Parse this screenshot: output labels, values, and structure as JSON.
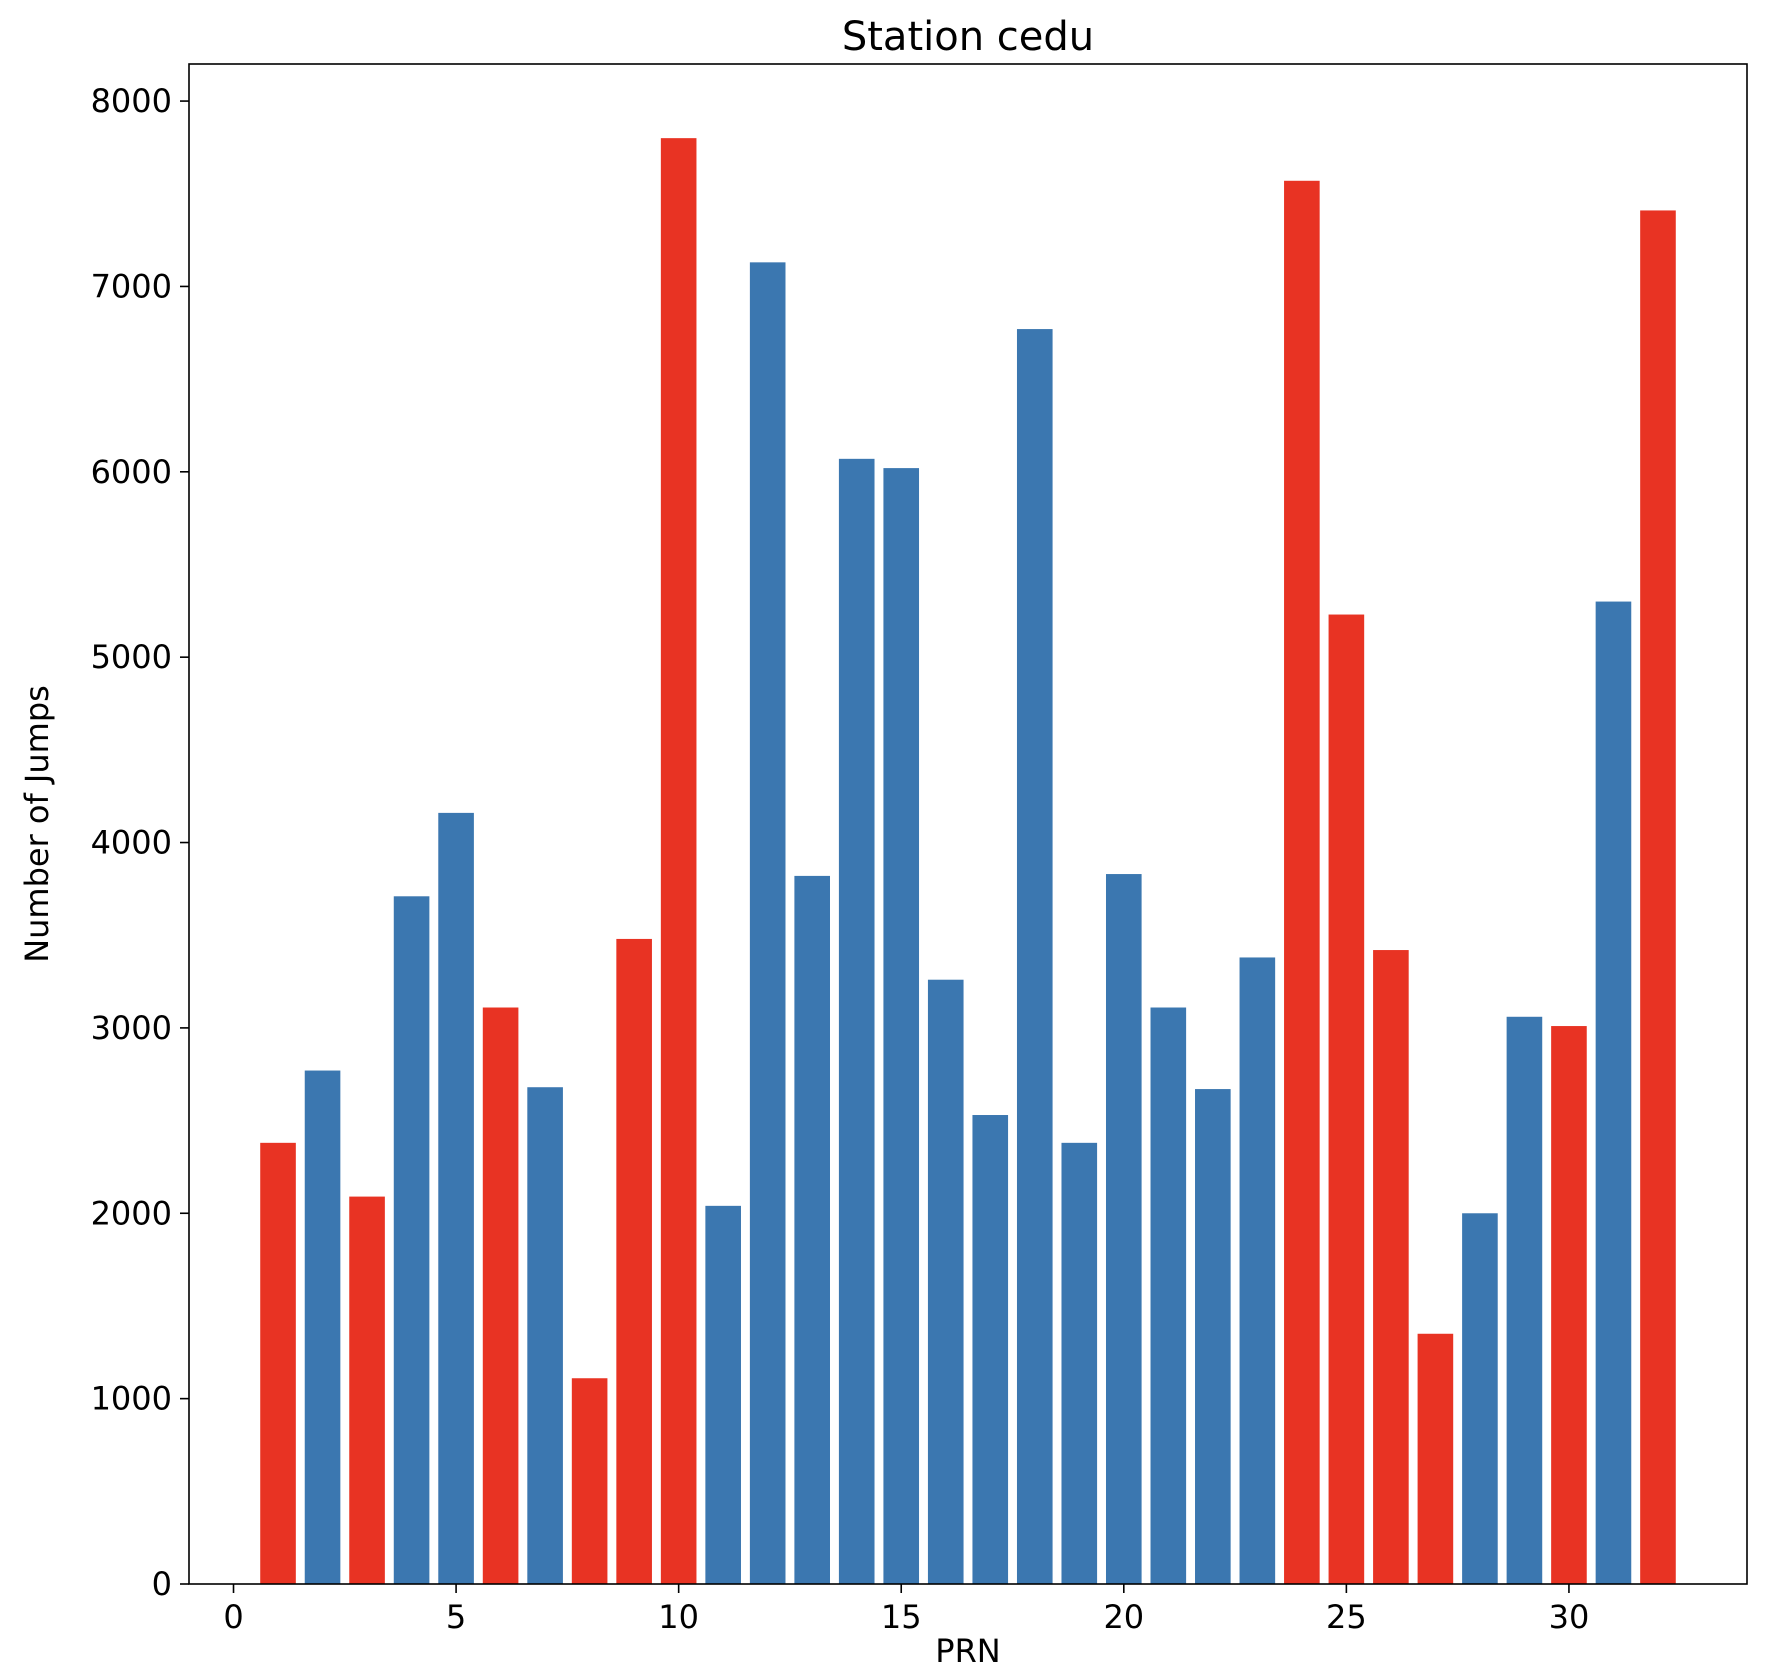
{
  "chart_data": {
    "type": "bar",
    "title": "Station cedu",
    "xlabel": "PRN",
    "ylabel": "Number of Jumps",
    "xlim": [
      -1,
      34
    ],
    "ylim": [
      0,
      8200
    ],
    "xticks": [
      0,
      5,
      10,
      15,
      20,
      25,
      30
    ],
    "yticks": [
      0,
      1000,
      2000,
      3000,
      4000,
      5000,
      6000,
      7000,
      8000
    ],
    "grid": false,
    "colors": {
      "red": "#e83323",
      "blue": "#3b77b0"
    },
    "bars": [
      {
        "x": 1,
        "value": 2380,
        "color": "red"
      },
      {
        "x": 2,
        "value": 2770,
        "color": "blue"
      },
      {
        "x": 3,
        "value": 2090,
        "color": "red"
      },
      {
        "x": 4,
        "value": 3710,
        "color": "blue"
      },
      {
        "x": 5,
        "value": 4160,
        "color": "blue"
      },
      {
        "x": 6,
        "value": 3110,
        "color": "red"
      },
      {
        "x": 7,
        "value": 2680,
        "color": "blue"
      },
      {
        "x": 8,
        "value": 1110,
        "color": "red"
      },
      {
        "x": 9,
        "value": 3480,
        "color": "red"
      },
      {
        "x": 10,
        "value": 7800,
        "color": "red"
      },
      {
        "x": 11,
        "value": 2040,
        "color": "blue"
      },
      {
        "x": 12,
        "value": 7130,
        "color": "blue"
      },
      {
        "x": 13,
        "value": 3820,
        "color": "blue"
      },
      {
        "x": 14,
        "value": 6070,
        "color": "blue"
      },
      {
        "x": 15,
        "value": 6020,
        "color": "blue"
      },
      {
        "x": 16,
        "value": 3260,
        "color": "blue"
      },
      {
        "x": 17,
        "value": 2530,
        "color": "blue"
      },
      {
        "x": 18,
        "value": 6770,
        "color": "blue"
      },
      {
        "x": 19,
        "value": 2380,
        "color": "blue"
      },
      {
        "x": 20,
        "value": 3830,
        "color": "blue"
      },
      {
        "x": 21,
        "value": 3110,
        "color": "blue"
      },
      {
        "x": 22,
        "value": 2670,
        "color": "blue"
      },
      {
        "x": 23,
        "value": 3380,
        "color": "blue"
      },
      {
        "x": 24,
        "value": 7570,
        "color": "red"
      },
      {
        "x": 25,
        "value": 5230,
        "color": "red"
      },
      {
        "x": 26,
        "value": 3420,
        "color": "red"
      },
      {
        "x": 27,
        "value": 1350,
        "color": "red"
      },
      {
        "x": 28,
        "value": 2000,
        "color": "blue"
      },
      {
        "x": 29,
        "value": 3060,
        "color": "blue"
      },
      {
        "x": 30,
        "value": 3010,
        "color": "red"
      },
      {
        "x": 31,
        "value": 5300,
        "color": "blue"
      },
      {
        "x": 32,
        "value": 7410,
        "color": "red"
      }
    ]
  }
}
